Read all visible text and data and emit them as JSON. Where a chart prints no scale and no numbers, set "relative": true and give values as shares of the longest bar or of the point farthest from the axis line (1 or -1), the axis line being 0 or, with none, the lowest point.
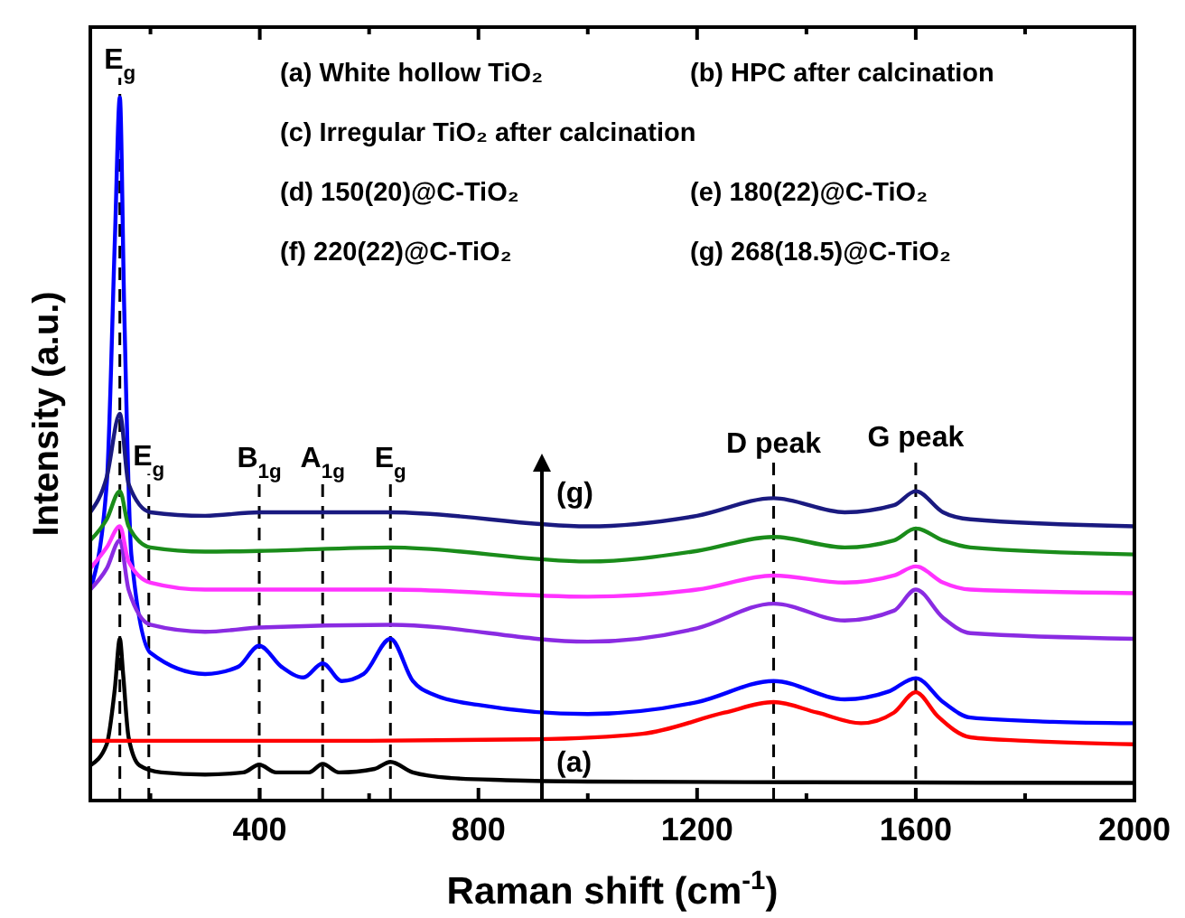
{
  "chart_data": {
    "type": "line",
    "relative": true,
    "xlabel": "Raman shift (cm$^{-1}$)",
    "ylabel": "Intensity (a.u.)",
    "xlim": [
      90,
      2000
    ],
    "xticks": [
      {
        "value": 200,
        "label": null
      },
      400,
      {
        "value": 600,
        "label": null
      },
      800,
      {
        "value": 1000,
        "label": null
      },
      1200,
      {
        "value": 1400,
        "label": null
      },
      1600,
      {
        "value": 1800,
        "label": null
      },
      2000
    ],
    "tick_labels": "x",
    "grid": false,
    "marker": "none",
    "line_style": "solid",
    "series": [
      {
        "color": "#000000",
        "x": [
          90,
          120,
          135,
          144,
          150,
          160,
          180,
          220,
          300,
          370,
          399,
          430,
          490,
          515,
          545,
          610,
          639,
          680,
          750,
          850,
          1000,
          1400,
          2000
        ],
        "values": [
          0.05,
          0.08,
          0.16,
          0.23,
          0.18,
          0.09,
          0.05,
          0.04,
          0.037,
          0.04,
          0.051,
          0.04,
          0.04,
          0.052,
          0.04,
          0.045,
          0.055,
          0.04,
          0.032,
          0.029,
          0.027,
          0.026,
          0.025
        ]
      },
      {
        "color": "#ff0000",
        "x": [
          90,
          300,
          600,
          900,
          1100,
          1250,
          1340,
          1420,
          1500,
          1560,
          1600,
          1640,
          1700,
          1800,
          2000
        ],
        "values": [
          0.085,
          0.085,
          0.085,
          0.087,
          0.095,
          0.125,
          0.14,
          0.125,
          0.11,
          0.125,
          0.154,
          0.12,
          0.09,
          0.085,
          0.08
        ]
      },
      {
        "color": "#0000ff",
        "x": [
          90,
          120,
          135,
          144,
          152,
          165,
          200,
          300,
          360,
          399,
          440,
          480,
          515,
          550,
          590,
          639,
          680,
          720,
          800,
          1000,
          1200,
          1340,
          1470,
          1550,
          1600,
          1650,
          1700,
          1850,
          2000
        ],
        "values": [
          0.3,
          0.45,
          0.8,
          1,
          0.7,
          0.35,
          0.21,
          0.18,
          0.19,
          0.22,
          0.19,
          0.175,
          0.195,
          0.17,
          0.18,
          0.23,
          0.17,
          0.15,
          0.136,
          0.123,
          0.14,
          0.17,
          0.144,
          0.155,
          0.174,
          0.14,
          0.118,
          0.112,
          0.11
        ]
      },
      {
        "color": "#8a2be2",
        "x": [
          90,
          120,
          144,
          160,
          200,
          300,
          400,
          640,
          1000,
          1200,
          1340,
          1470,
          1560,
          1600,
          1650,
          1700,
          2000
        ],
        "values": [
          0.3,
          0.33,
          0.37,
          0.3,
          0.25,
          0.24,
          0.246,
          0.25,
          0.226,
          0.245,
          0.28,
          0.256,
          0.27,
          0.3,
          0.26,
          0.238,
          0.23
        ]
      },
      {
        "color": "#ff33ff",
        "x": [
          90,
          120,
          144,
          160,
          200,
          300,
          400,
          640,
          1000,
          1200,
          1340,
          1470,
          1560,
          1600,
          1650,
          1700,
          2000
        ],
        "values": [
          0.33,
          0.36,
          0.39,
          0.34,
          0.31,
          0.3,
          0.3,
          0.3,
          0.29,
          0.3,
          0.32,
          0.31,
          0.32,
          0.333,
          0.31,
          0.3,
          0.295
        ]
      },
      {
        "color": "#1a8c1a",
        "x": [
          90,
          120,
          144,
          160,
          200,
          300,
          400,
          640,
          1000,
          1200,
          1340,
          1470,
          1560,
          1600,
          1650,
          1700,
          2000
        ],
        "values": [
          0.37,
          0.4,
          0.44,
          0.39,
          0.36,
          0.354,
          0.355,
          0.36,
          0.34,
          0.355,
          0.375,
          0.36,
          0.37,
          0.387,
          0.37,
          0.36,
          0.35
        ]
      },
      {
        "color": "#1a1a80",
        "x": [
          90,
          120,
          144,
          160,
          200,
          300,
          400,
          640,
          1000,
          1200,
          1340,
          1470,
          1560,
          1600,
          1650,
          1700,
          2000
        ],
        "values": [
          0.41,
          0.46,
          0.55,
          0.45,
          0.41,
          0.405,
          0.41,
          0.41,
          0.39,
          0.405,
          0.43,
          0.41,
          0.42,
          0.44,
          0.41,
          0.4,
          0.39
        ]
      }
    ],
    "ref_lines": [
      {
        "axis": "x",
        "value": 144,
        "label": "E$_{g}$",
        "color": "#000000",
        "line_style": "dashed"
      },
      {
        "axis": "x",
        "value": 197,
        "label": "E$_{g}$",
        "color": "#000000",
        "line_style": "dashed"
      },
      {
        "axis": "x",
        "value": 399,
        "label": "B$_{1g}$",
        "color": "#000000",
        "line_style": "dashed"
      },
      {
        "axis": "x",
        "value": 515,
        "label": "A$_{1g}$",
        "color": "#000000",
        "line_style": "dashed"
      },
      {
        "axis": "x",
        "value": 639,
        "label": "E$_{g}$",
        "color": "#000000",
        "line_style": "dashed"
      },
      {
        "axis": "x",
        "value": 1340,
        "label": "D peak",
        "color": "#000000",
        "line_style": "dashed"
      },
      {
        "axis": "x",
        "value": 1600,
        "label": "G peak",
        "color": "#000000",
        "line_style": "dashed"
      }
    ],
    "annotations": [
      "(a) White hollow TiO₂",
      "(b) HPC after calcination",
      "(c) Irregular TiO₂ after calcination",
      "(d) 150(20)@C-TiO₂",
      "(e) 180(22)@C-TiO₂",
      "(f)  220(22)@C-TiO₂",
      "(g) 268(18.5)@C-TiO₂",
      "(a)",
      "(g)"
    ]
  }
}
